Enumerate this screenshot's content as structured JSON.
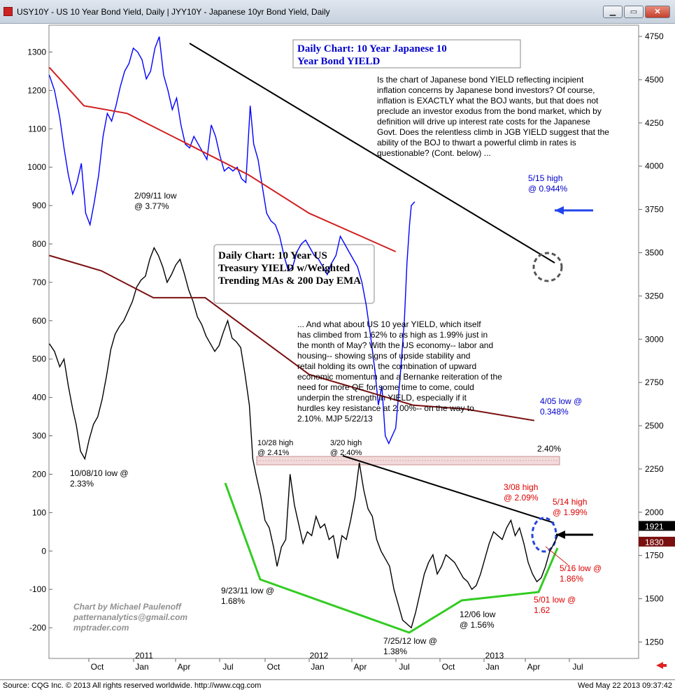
{
  "window": {
    "title": "USY10Y - US 10 Year Bond Yield, Daily   |  JYY10Y - Japanese 10yr Bond Yield, Daily",
    "buttons": [
      "minimize",
      "restore",
      "close"
    ]
  },
  "footer": {
    "source": "Source: CQG Inc. © 2013 All rights reserved worldwide.  http://www.cqg.com",
    "timestamp": "Wed May 22 2013 09:37:42"
  },
  "chart_data": {
    "type": "line",
    "x_ticks": [
      "Oct",
      "Jan",
      "Apr",
      "Jul",
      "Oct",
      "Jan",
      "Apr",
      "Jul",
      "Oct",
      "Jan",
      "Apr",
      "Jul"
    ],
    "year_labels": [
      "2011",
      "2012",
      "2013"
    ],
    "left_axis": {
      "ticks": [
        1300,
        1200,
        1100,
        1000,
        900,
        800,
        700,
        600,
        500,
        400,
        300,
        200,
        100,
        0,
        -100,
        -200
      ],
      "range": [
        -280,
        1370
      ]
    },
    "right_axis": {
      "ticks": [
        4750,
        4500,
        4250,
        4000,
        3750,
        3500,
        3250,
        3000,
        2750,
        2500,
        2250,
        2000,
        1750,
        1500,
        1250
      ],
      "range": [
        1155,
        4815
      ]
    },
    "right_axis_tags": [
      {
        "text": "1921",
        "value": 1921,
        "color": "#000000"
      },
      {
        "text": "1830",
        "value": 1830,
        "color": "#7a1010"
      }
    ],
    "series": [
      {
        "name": "USY10Y - US 10 Year Bond Yield",
        "color": "#000000",
        "points": [
          [
            0,
            540
          ],
          [
            6,
            520
          ],
          [
            12,
            480
          ],
          [
            17,
            500
          ],
          [
            22,
            430
          ],
          [
            27,
            370
          ],
          [
            31,
            330
          ],
          [
            36,
            260
          ],
          [
            41,
            240
          ],
          [
            46,
            290
          ],
          [
            51,
            330
          ],
          [
            56,
            350
          ],
          [
            61,
            395
          ],
          [
            66,
            455
          ],
          [
            71,
            525
          ],
          [
            76,
            565
          ],
          [
            81,
            585
          ],
          [
            86,
            600
          ],
          [
            91,
            625
          ],
          [
            96,
            650
          ],
          [
            101,
            688
          ],
          [
            106,
            706
          ],
          [
            111,
            716
          ],
          [
            116,
            760
          ],
          [
            121,
            790
          ],
          [
            126,
            770
          ],
          [
            131,
            740
          ],
          [
            136,
            700
          ],
          [
            141,
            720
          ],
          [
            146,
            745
          ],
          [
            151,
            760
          ],
          [
            156,
            722
          ],
          [
            161,
            680
          ],
          [
            166,
            650
          ],
          [
            171,
            610
          ],
          [
            176,
            590
          ],
          [
            181,
            560
          ],
          [
            186,
            540
          ],
          [
            191,
            520
          ],
          [
            196,
            535
          ],
          [
            201,
            570
          ],
          [
            206,
            600
          ],
          [
            211,
            555
          ],
          [
            216,
            545
          ],
          [
            221,
            530
          ],
          [
            226,
            460
          ],
          [
            231,
            380
          ],
          [
            235,
            240
          ],
          [
            239,
            195
          ],
          [
            244,
            145
          ],
          [
            249,
            80
          ],
          [
            254,
            60
          ],
          [
            259,
            10
          ],
          [
            263,
            -40
          ],
          [
            268,
            10
          ],
          [
            273,
            30
          ],
          [
            278,
            200
          ],
          [
            283,
            120
          ],
          [
            288,
            70
          ],
          [
            293,
            20
          ],
          [
            298,
            50
          ],
          [
            303,
            40
          ],
          [
            308,
            90
          ],
          [
            313,
            60
          ],
          [
            318,
            70
          ],
          [
            323,
            30
          ],
          [
            328,
            40
          ],
          [
            333,
            -20
          ],
          [
            338,
            40
          ],
          [
            343,
            30
          ],
          [
            348,
            80
          ],
          [
            353,
            140
          ],
          [
            358,
            230
          ],
          [
            363,
            160
          ],
          [
            368,
            110
          ],
          [
            373,
            90
          ],
          [
            378,
            30
          ],
          [
            383,
            0
          ],
          [
            388,
            -20
          ],
          [
            393,
            -40
          ],
          [
            398,
            -100
          ],
          [
            403,
            -140
          ],
          [
            408,
            -180
          ],
          [
            413,
            -190
          ],
          [
            418,
            -200
          ],
          [
            423,
            -160
          ],
          [
            428,
            -110
          ],
          [
            433,
            -60
          ],
          [
            438,
            -30
          ],
          [
            443,
            -10
          ],
          [
            448,
            -60
          ],
          [
            453,
            -40
          ],
          [
            458,
            -10
          ],
          [
            463,
            -20
          ],
          [
            468,
            -30
          ],
          [
            473,
            -50
          ],
          [
            478,
            -70
          ],
          [
            483,
            -80
          ],
          [
            488,
            -100
          ],
          [
            493,
            -90
          ],
          [
            498,
            -60
          ],
          [
            503,
            -20
          ],
          [
            508,
            20
          ],
          [
            513,
            50
          ],
          [
            518,
            40
          ],
          [
            523,
            30
          ],
          [
            528,
            60
          ],
          [
            533,
            80
          ],
          [
            538,
            40
          ],
          [
            543,
            60
          ],
          [
            548,
            20
          ],
          [
            553,
            -30
          ],
          [
            558,
            -60
          ],
          [
            563,
            -80
          ],
          [
            568,
            -70
          ],
          [
            573,
            -40
          ],
          [
            578,
            0
          ],
          [
            583,
            20
          ],
          [
            587,
            40
          ]
        ]
      },
      {
        "name": "JYY10Y - Japanese 10yr Bond Yield",
        "color": "#0000ff",
        "points": [
          [
            0,
            1240
          ],
          [
            6,
            1200
          ],
          [
            12,
            1130
          ],
          [
            17,
            1050
          ],
          [
            22,
            980
          ],
          [
            27,
            930
          ],
          [
            32,
            960
          ],
          [
            37,
            1010
          ],
          [
            42,
            880
          ],
          [
            47,
            850
          ],
          [
            52,
            910
          ],
          [
            57,
            980
          ],
          [
            62,
            1080
          ],
          [
            67,
            1140
          ],
          [
            72,
            1120
          ],
          [
            77,
            1160
          ],
          [
            82,
            1210
          ],
          [
            87,
            1250
          ],
          [
            92,
            1270
          ],
          [
            97,
            1310
          ],
          [
            102,
            1300
          ],
          [
            107,
            1280
          ],
          [
            112,
            1230
          ],
          [
            117,
            1250
          ],
          [
            122,
            1310
          ],
          [
            127,
            1340
          ],
          [
            132,
            1240
          ],
          [
            137,
            1200
          ],
          [
            142,
            1150
          ],
          [
            147,
            1180
          ],
          [
            152,
            1110
          ],
          [
            157,
            1060
          ],
          [
            162,
            1050
          ],
          [
            167,
            1080
          ],
          [
            172,
            1060
          ],
          [
            177,
            1040
          ],
          [
            182,
            1020
          ],
          [
            187,
            1110
          ],
          [
            192,
            1080
          ],
          [
            197,
            1030
          ],
          [
            202,
            990
          ],
          [
            207,
            1000
          ],
          [
            212,
            990
          ],
          [
            217,
            1000
          ],
          [
            222,
            970
          ],
          [
            227,
            960
          ],
          [
            232,
            1160
          ],
          [
            236,
            1060
          ],
          [
            241,
            1020
          ],
          [
            246,
            950
          ],
          [
            251,
            880
          ],
          [
            256,
            860
          ],
          [
            261,
            850
          ],
          [
            266,
            820
          ],
          [
            271,
            770
          ],
          [
            276,
            730
          ],
          [
            281,
            740
          ],
          [
            286,
            780
          ],
          [
            291,
            800
          ],
          [
            296,
            810
          ],
          [
            301,
            790
          ],
          [
            306,
            770
          ],
          [
            311,
            760
          ],
          [
            316,
            740
          ],
          [
            321,
            720
          ],
          [
            326,
            750
          ],
          [
            331,
            770
          ],
          [
            336,
            820
          ],
          [
            341,
            800
          ],
          [
            346,
            780
          ],
          [
            351,
            760
          ],
          [
            356,
            740
          ],
          [
            361,
            700
          ],
          [
            366,
            640
          ],
          [
            371,
            560
          ],
          [
            376,
            470
          ],
          [
            380,
            380
          ],
          [
            384,
            430
          ],
          [
            388,
            300
          ],
          [
            392,
            280
          ],
          [
            396,
            300
          ],
          [
            400,
            320
          ],
          [
            405,
            450
          ],
          [
            410,
            600
          ],
          [
            413,
            750
          ],
          [
            416,
            850
          ],
          [
            418,
            900
          ],
          [
            422,
            910
          ]
        ]
      },
      {
        "name": "JGB 200 day EMA",
        "color": "#d02020",
        "points": [
          [
            0,
            1260
          ],
          [
            40,
            1160
          ],
          [
            90,
            1140
          ],
          [
            160,
            1060
          ],
          [
            230,
            980
          ],
          [
            300,
            880
          ],
          [
            360,
            820
          ],
          [
            400,
            780
          ]
        ]
      },
      {
        "name": "UST 200 day EMA",
        "color": "#7a1010",
        "points": [
          [
            0,
            770
          ],
          [
            60,
            730
          ],
          [
            120,
            660
          ],
          [
            180,
            660
          ],
          [
            240,
            560
          ],
          [
            300,
            460
          ],
          [
            360,
            420
          ],
          [
            420,
            380
          ],
          [
            480,
            370
          ],
          [
            560,
            340
          ]
        ]
      }
    ],
    "annotations": [
      {
        "text": "Daily Chart: 10 Year Japanese 10 Year Bond YIELD",
        "color": "#0000cc"
      },
      {
        "text": "Is the chart of Japanese bond YIELD reflecting incipient inflation concerns by Japanese bond investors?  Of course, inflation is EXACTLY what the BOJ wants, but that does not preclude an investor exodus from the bond market, which by definition will drive up interest rate costs for the Japanese Govt. Does the relentless climb in JGB YIELD suggest that the ability of the BOJ to thwart a powerful climb in rates is questionable?  (Cont. below) ..."
      },
      {
        "text": "Daily Chart: 10 Year US Treasury YIELD w/Weighted Trending MAs & 200 Day EMA"
      },
      {
        "text": "... And what about US 10 year YIELD, which itself has climbed from 1.62% to as high as 1.99% just in the month of May? With the US economy-- labor and housing-- showing signs of upside stability and retail holding its own, the combination of upward economic momentum and a Bernanke reiteration of the need for more QE for some time to come, could underpin the strength in YIELD, especially if it hurdles key resistance at 2.00%-- on the way to 2.10%. MJP  5/22/13"
      },
      {
        "text": "2/09/11 low @ 3.77%"
      },
      {
        "text": "5/15 high @ 0.944%",
        "color": "#0000cc"
      },
      {
        "text": "4/05 low @ 0.348%",
        "color": "#0000cc"
      },
      {
        "text": "10/08/10 low @ 2.33%"
      },
      {
        "text": "10/28 high @ 2.41%"
      },
      {
        "text": "3/20 high @ 2.40%"
      },
      {
        "text": "2.40%"
      },
      {
        "text": "3/08 high @ 2.09%",
        "color": "#dd0000"
      },
      {
        "text": "5/14 high @ 1.99%",
        "color": "#dd0000"
      },
      {
        "text": "5/16 low @ 1.86%",
        "color": "#dd0000"
      },
      {
        "text": "5/01 low @ 1.62",
        "color": "#dd0000"
      },
      {
        "text": "9/23/11 low @ 1.68%"
      },
      {
        "text": "12/06 low @ 1.56%"
      },
      {
        "text": "7/25/12 low @ 1.38%"
      },
      {
        "text": "Chart by Michael Paulenoff patternanalytics@gmail.com mptrader.com",
        "color": "#909090"
      }
    ]
  }
}
